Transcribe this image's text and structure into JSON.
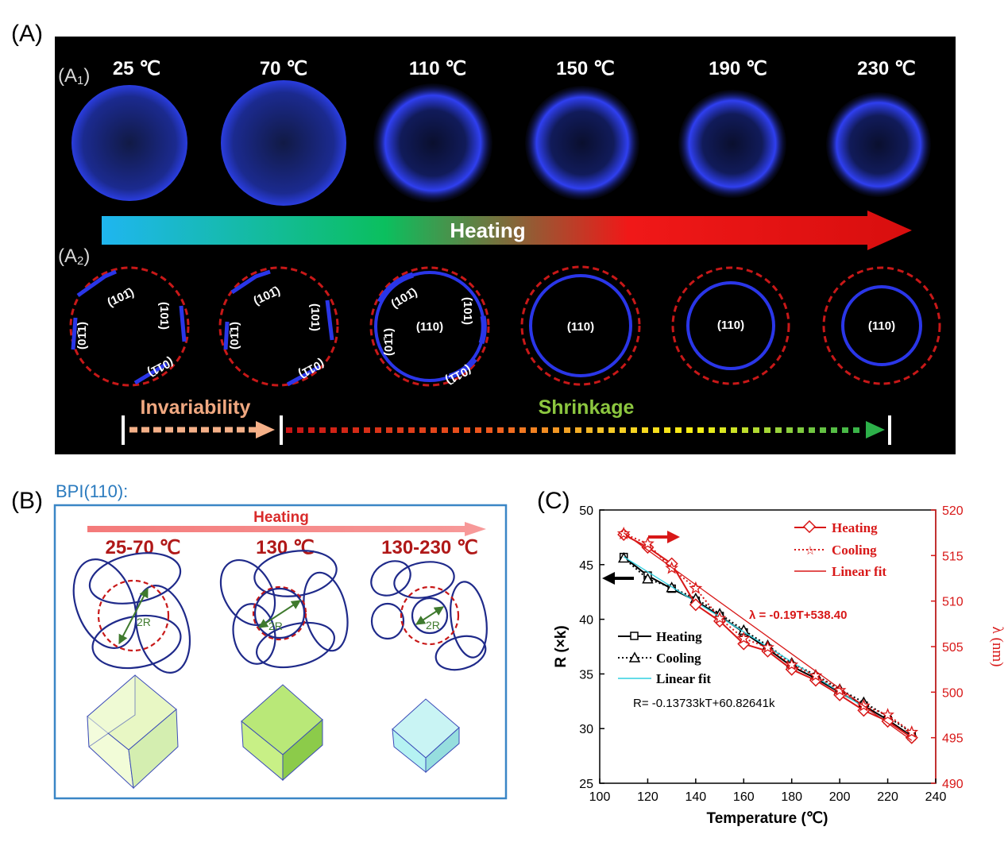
{
  "panel_a": {
    "label": "(A)",
    "row1_label": "(A1)",
    "row2_label": "(A2)",
    "temperatures": [
      "25 ℃",
      "70 ℃",
      "110 ℃",
      "150 ℃",
      "190 ℃",
      "230 ℃"
    ],
    "heating_label": "Heating",
    "invariability_label": "Invariability",
    "shrinkage_label": "Shrinkage",
    "plane_labels": {
      "p10_1": "(101̄)",
      "p101": "(101)",
      "p01_1": "(011̄)",
      "p0_11": "(01̄1)",
      "p110": "(110)"
    }
  },
  "panel_b": {
    "label": "(B)",
    "title": "BPI(110):",
    "heating_label": "Heating",
    "stages": [
      "25-70 ℃",
      "130 ℃",
      "130-230 ℃"
    ],
    "radius_label": "2R"
  },
  "panel_c": {
    "label": "(C)",
    "equation_lambda": "λ = -0.19T+538.40",
    "equation_r": "R= -0.13733kT+60.82641k",
    "legend_red": [
      "Heating",
      "Cooling",
      "Linear fit"
    ],
    "legend_black": [
      "Heating",
      "Cooling",
      "Linear fit"
    ]
  },
  "chart_data": {
    "type": "line",
    "xlabel": "Temperature (℃)",
    "ylabel": "R (×k)",
    "y2label": "λ (nm)",
    "xlim": [
      100,
      240
    ],
    "ylim": [
      25,
      50
    ],
    "y2lim": [
      490,
      520
    ],
    "xticks": [
      100,
      120,
      140,
      160,
      180,
      200,
      220,
      240
    ],
    "yticks": [
      25,
      30,
      35,
      40,
      45,
      50
    ],
    "y2ticks": [
      490,
      495,
      500,
      505,
      510,
      515,
      520
    ],
    "series": [
      {
        "name": "Heating",
        "axis": "left",
        "x": [
          110,
          120,
          130,
          140,
          150,
          160,
          170,
          180,
          190,
          200,
          210,
          220,
          230
        ],
        "y": [
          45.7,
          44.0,
          42.8,
          41.7,
          40.3,
          38.8,
          37.3,
          35.7,
          34.6,
          33.3,
          32.1,
          30.8,
          29.3
        ]
      },
      {
        "name": "Cooling",
        "axis": "left",
        "x": [
          110,
          120,
          130,
          140,
          150,
          160,
          170,
          180,
          190,
          200,
          210,
          220,
          230
        ],
        "y": [
          45.6,
          43.7,
          42.9,
          41.9,
          40.5,
          39.0,
          37.6,
          36.0,
          34.9,
          33.6,
          32.4,
          31.1,
          29.6
        ]
      },
      {
        "name": "Linear fit",
        "axis": "left",
        "x": [
          110,
          230
        ],
        "y": [
          45.72,
          29.24
        ]
      },
      {
        "name": "Heating",
        "axis": "right",
        "x": [
          110,
          120,
          130,
          140,
          150,
          160,
          170,
          180,
          190,
          200,
          210,
          220,
          230
        ],
        "y": [
          517.3,
          515.9,
          514.1,
          509.6,
          507.8,
          505.3,
          504.5,
          502.5,
          501.3,
          499.7,
          498.0,
          496.8,
          495.0
        ]
      },
      {
        "name": "Cooling",
        "axis": "right",
        "x": [
          110,
          120,
          130,
          140,
          150,
          160,
          170,
          180,
          190,
          200,
          210,
          220,
          230
        ],
        "y": [
          517.4,
          516.3,
          513.6,
          511.4,
          508.1,
          505.9,
          504.9,
          503.0,
          501.8,
          500.2,
          498.5,
          497.5,
          495.6
        ]
      },
      {
        "name": "Linear fit",
        "axis": "right",
        "x": [
          110,
          230
        ],
        "y": [
          517.5,
          494.7
        ]
      }
    ]
  }
}
